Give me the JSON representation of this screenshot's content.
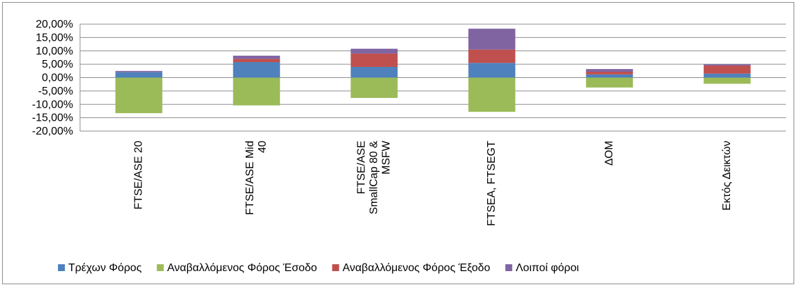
{
  "chart_data": {
    "type": "bar",
    "stacked": true,
    "categories": [
      [
        "FTSE/ASE 20"
      ],
      [
        "FTSE/ASE Mid",
        "40"
      ],
      [
        "FTSE/ASE",
        "SmallCap 80 &",
        "MSFW"
      ],
      [
        "FTSEA, FTSEGT"
      ],
      [
        "ΔΟΜ"
      ],
      [
        "Εκτός Δεικτών"
      ]
    ],
    "series": [
      {
        "name": "Τρέχων Φόρος",
        "color": "#4f81bd",
        "values": [
          2.0,
          5.8,
          4.0,
          5.5,
          1.2,
          1.5
        ]
      },
      {
        "name": "Αναβαλλόμενος Φόρος Έσοδο",
        "color": "#9bbb59",
        "values": [
          -13.3,
          -10.4,
          -7.6,
          -12.8,
          -3.7,
          -2.3
        ]
      },
      {
        "name": "Αναβαλλόμενος Φόρος Έξοδο",
        "color": "#c0504d",
        "values": [
          0.0,
          1.2,
          5.0,
          5.0,
          1.0,
          3.0
        ]
      },
      {
        "name": "Λοιποί φόροι",
        "color": "#8064a2",
        "values": [
          0.5,
          1.2,
          1.8,
          7.8,
          1.0,
          0.5
        ]
      }
    ],
    "ylim": [
      -20,
      20
    ],
    "yticks": [
      "20,00%",
      "15,00%",
      "10,00%",
      "5,00%",
      "0,00%",
      "-5,00%",
      "-10,00%",
      "-15,00%",
      "-20,00%"
    ],
    "ytick_values": [
      20,
      15,
      10,
      5,
      0,
      -5,
      -10,
      -15,
      -20
    ],
    "grid": true,
    "legend_position": "bottom"
  }
}
